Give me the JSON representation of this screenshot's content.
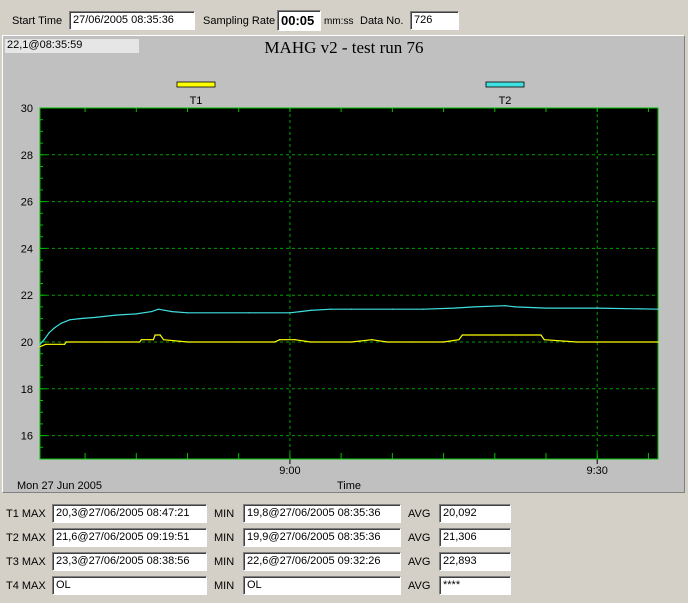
{
  "toolbar": {
    "start_time_label": "Start Time",
    "start_time_value": "27/06/2005 08:35:36",
    "sampling_rate_label": "Sampling Rate",
    "sampling_rate_value": "00:05",
    "sampling_rate_unit": "mm:ss",
    "data_no_label": "Data No.",
    "data_no_value": "726"
  },
  "cursor_readout": "22,1@08:35:59",
  "chart_data": {
    "type": "line",
    "title": "MAHG v2 - test run 76",
    "xlabel": "Time",
    "date_label": "Mon 27 Jun 2005",
    "x_ticks": [
      "9:00",
      "9:30"
    ],
    "y_ticks": [
      "16",
      "18",
      "20",
      "22",
      "24",
      "26",
      "28",
      "30"
    ],
    "ylim": [
      15,
      30
    ],
    "xlim": [
      "08:35:36",
      "09:35:56"
    ],
    "grid": true,
    "background": "#000000",
    "legend_position": "top",
    "series": [
      {
        "name": "T1",
        "color": "#ffff00",
        "points": [
          [
            "08:35:36",
            19.8
          ],
          [
            "08:36:10",
            19.9
          ],
          [
            "08:37:30",
            19.9
          ],
          [
            "08:38:00",
            19.9
          ],
          [
            "08:38:10",
            20.0
          ],
          [
            "08:40:00",
            20.0
          ],
          [
            "08:42:00",
            20.0
          ],
          [
            "08:44:00",
            20.0
          ],
          [
            "08:45:20",
            20.0
          ],
          [
            "08:45:30",
            20.1
          ],
          [
            "08:46:20",
            20.1
          ],
          [
            "08:46:40",
            20.1
          ],
          [
            "08:46:50",
            20.3
          ],
          [
            "08:47:20",
            20.3
          ],
          [
            "08:47:40",
            20.1
          ],
          [
            "08:50:00",
            20.0
          ],
          [
            "08:55:00",
            20.0
          ],
          [
            "08:58:30",
            20.0
          ],
          [
            "08:59:00",
            20.1
          ],
          [
            "09:00:30",
            20.1
          ],
          [
            "09:02:00",
            20.0
          ],
          [
            "09:06:00",
            20.0
          ],
          [
            "09:08:00",
            20.1
          ],
          [
            "09:09:30",
            20.0
          ],
          [
            "09:12:00",
            20.0
          ],
          [
            "09:15:00",
            20.0
          ],
          [
            "09:16:30",
            20.1
          ],
          [
            "09:16:50",
            20.3
          ],
          [
            "09:24:30",
            20.3
          ],
          [
            "09:24:50",
            20.1
          ],
          [
            "09:28:00",
            20.0
          ],
          [
            "09:35:56",
            20.0
          ]
        ]
      },
      {
        "name": "T2",
        "color": "#40e0e0",
        "points": [
          [
            "08:35:36",
            19.9
          ],
          [
            "08:36:00",
            20.1
          ],
          [
            "08:36:30",
            20.4
          ],
          [
            "08:37:00",
            20.6
          ],
          [
            "08:37:40",
            20.8
          ],
          [
            "08:38:30",
            20.95
          ],
          [
            "08:39:30",
            21.0
          ],
          [
            "08:41:00",
            21.05
          ],
          [
            "08:43:00",
            21.15
          ],
          [
            "08:45:00",
            21.2
          ],
          [
            "08:46:30",
            21.3
          ],
          [
            "08:47:10",
            21.4
          ],
          [
            "08:48:30",
            21.3
          ],
          [
            "08:50:00",
            21.25
          ],
          [
            "08:56:00",
            21.25
          ],
          [
            "09:00:00",
            21.25
          ],
          [
            "09:01:00",
            21.3
          ],
          [
            "09:02:00",
            21.35
          ],
          [
            "09:04:00",
            21.4
          ],
          [
            "09:06:00",
            21.4
          ],
          [
            "09:10:00",
            21.4
          ],
          [
            "09:13:00",
            21.4
          ],
          [
            "09:16:00",
            21.45
          ],
          [
            "09:18:00",
            21.5
          ],
          [
            "09:21:00",
            21.55
          ],
          [
            "09:22:00",
            21.5
          ],
          [
            "09:25:00",
            21.45
          ],
          [
            "09:28:00",
            21.45
          ],
          [
            "09:30:00",
            21.45
          ],
          [
            "09:35:56",
            21.4
          ]
        ]
      }
    ]
  },
  "stats": [
    {
      "max_label": "T1 MAX",
      "max": "20,3@27/06/2005 08:47:21",
      "min_label": "MIN",
      "min": "19,8@27/06/2005 08:35:36",
      "avg_label": "AVG",
      "avg": "20,092"
    },
    {
      "max_label": "T2 MAX",
      "max": "21,6@27/06/2005 09:19:51",
      "min_label": "MIN",
      "min": "19,9@27/06/2005 08:35:36",
      "avg_label": "AVG",
      "avg": "21,306"
    },
    {
      "max_label": "T3 MAX",
      "max": "23,3@27/06/2005 08:38:56",
      "min_label": "MIN",
      "min": "22,6@27/06/2005 09:32:26",
      "avg_label": "AVG",
      "avg": "22,893"
    },
    {
      "max_label": "T4 MAX",
      "max": "OL",
      "min_label": "MIN",
      "min": "OL",
      "avg_label": "AVG",
      "avg": "****"
    }
  ]
}
